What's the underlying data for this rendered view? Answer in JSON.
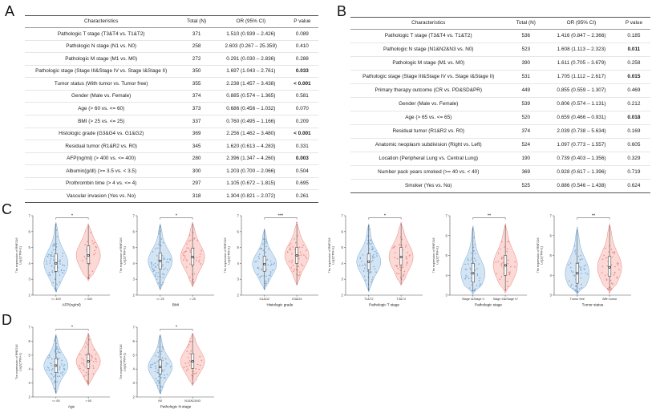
{
  "figure": {
    "panel_a_label": "A",
    "panel_b_label": "B",
    "panel_c_label": "C",
    "panel_d_label": "D"
  },
  "table_a": {
    "columns": [
      "Characteristics",
      "Total (N)",
      "OR (95% CI)",
      "P value"
    ],
    "rows": [
      {
        "cells": [
          "Pathologic T stage (T3&T4 vs. T1&T2)",
          "371",
          "1.510 (0.939 – 2.426)",
          "0.089"
        ],
        "bold": false
      },
      {
        "cells": [
          "Pathologic N stage (N1 vs. N0)",
          "258",
          "2.603 (0.267 – 25.359)",
          "0.410"
        ],
        "bold": false
      },
      {
        "cells": [
          "Pathologic M stage (M1 vs. M0)",
          "272",
          "0.291 (0.030 – 2.836)",
          "0.288"
        ],
        "bold": false
      },
      {
        "cells": [
          "Pathologic stage (Stage III&Stage IV vs. Stage I&Stage II)",
          "350",
          "1.697 (1.043 – 2.761)",
          "0.033"
        ],
        "bold": true
      },
      {
        "cells": [
          "Tumor status (With tumor vs. Tumor free)",
          "355",
          "2.238 (1.457 – 3.438)",
          "< 0.001"
        ],
        "bold": true
      },
      {
        "cells": [
          "Gender (Male vs. Female)",
          "374",
          "0.885 (0.574 – 1.365)",
          "0.581"
        ],
        "bold": false
      },
      {
        "cells": [
          "Age (> 60 vs. <= 60)",
          "373",
          "0.686 (0.456 – 1.032)",
          "0.070"
        ],
        "bold": false
      },
      {
        "cells": [
          "BMI (> 25 vs. <= 25)",
          "337",
          "0.760 (0.495 – 1.166)",
          "0.209"
        ],
        "bold": false
      },
      {
        "cells": [
          "Histologic grade (G3&G4 vs. G1&G2)",
          "369",
          "2.256 (1.462 – 3.480)",
          "< 0.001"
        ],
        "bold": true
      },
      {
        "cells": [
          "Residual tumor (R1&R2 vs. R0)",
          "345",
          "1.620 (0.613 – 4.283)",
          "0.331"
        ],
        "bold": false
      },
      {
        "cells": [
          "AFP(ng/ml) (> 400 vs. <= 400)",
          "280",
          "2.396 (1.347 – 4.260)",
          "0.003"
        ],
        "bold": true
      },
      {
        "cells": [
          "Albumin(g/dl) (>= 3.5 vs. < 3.5)",
          "300",
          "1.203 (0.700 – 2.066)",
          "0.504"
        ],
        "bold": false
      },
      {
        "cells": [
          "Prothrombin time (> 4 vs. <= 4)",
          "297",
          "1.105 (0.672 – 1.815)",
          "0.695"
        ],
        "bold": false
      },
      {
        "cells": [
          "Vascular invasion (Yes vs. No)",
          "318",
          "1.304 (0.821 – 2.072)",
          "0.261"
        ],
        "bold": false
      }
    ]
  },
  "table_b": {
    "columns": [
      "Characteristics",
      "Total (N)",
      "OR (95% CI)",
      "P value"
    ],
    "rows": [
      {
        "cells": [
          "Pathologic T stage (T3&T4 vs. T1&T2)",
          "536",
          "1.416 (0.847 – 2.366)",
          "0.185"
        ],
        "bold": false
      },
      {
        "cells": [
          "Pathologic N stage (N1&N2&N3 vs. N0)",
          "523",
          "1.608 (1.113 – 2.323)",
          "0.011"
        ],
        "bold": true
      },
      {
        "cells": [
          "Pathologic M stage (M1 vs. M0)",
          "390",
          "1.611 (0.705 – 3.679)",
          "0.258"
        ],
        "bold": false
      },
      {
        "cells": [
          "Pathologic stage (Stage III&Stage IV vs. Stage I&Stage II)",
          "531",
          "1.705 (1.112 – 2.617)",
          "0.015"
        ],
        "bold": true
      },
      {
        "cells": [
          "Primary therapy outcome (CR vs. PD&SD&PR)",
          "449",
          "0.855 (0.559 – 1.307)",
          "0.469"
        ],
        "bold": false
      },
      {
        "cells": [
          "Gender (Male vs. Female)",
          "539",
          "0.806 (0.574 – 1.131)",
          "0.212"
        ],
        "bold": false
      },
      {
        "cells": [
          "Age (> 65 vs. <= 65)",
          "520",
          "0.659 (0.466 – 0.931)",
          "0.018"
        ],
        "bold": true
      },
      {
        "cells": [
          "Residual tumor (R1&R2 vs. R0)",
          "374",
          "2.039 (0.738 – 5.634)",
          "0.169"
        ],
        "bold": false
      },
      {
        "cells": [
          "Anatomic neoplasm subdivision (Right vs. Left)",
          "524",
          "1.097 (0.773 – 1.557)",
          "0.605"
        ],
        "bold": false
      },
      {
        "cells": [
          "Location (Peripheral Lung vs. Central Lung)",
          "190",
          "0.739 (0.403 – 1.356)",
          "0.329"
        ],
        "bold": false
      },
      {
        "cells": [
          "Number pack years smoked (>= 40 vs. < 40)",
          "369",
          "0.928 (0.617 – 1.396)",
          "0.719"
        ],
        "bold": false
      },
      {
        "cells": [
          "Smoker (Yes vs. No)",
          "525",
          "0.886 (0.546 – 1.438)",
          "0.624"
        ],
        "bold": false
      }
    ]
  },
  "chart_shared": {
    "ylabel_line1": "The expression of RNF216",
    "ylabel_line2": "Log2(TPM+1)",
    "group1_color": "#6FA7D8",
    "group2_color": "#F08178"
  },
  "chart_data": [
    {
      "panel": "C",
      "type": "violin",
      "id": "afp",
      "xlabel": "AFP(ng/ml)",
      "sig": "*",
      "ylim": [
        2,
        7
      ],
      "yticks": [
        2,
        3,
        4,
        5,
        6,
        7
      ],
      "groups": [
        {
          "label": "<= 400",
          "color": "#6FA7D8",
          "median": 4.0,
          "q1": 3.5,
          "q3": 4.6,
          "min": 2.2,
          "max": 6.6,
          "n": 70
        },
        {
          "label": "> 400",
          "color": "#F08178",
          "median": 4.5,
          "q1": 4.0,
          "q3": 5.1,
          "min": 2.9,
          "max": 6.5,
          "n": 26
        }
      ]
    },
    {
      "panel": "C",
      "type": "violin",
      "id": "bmi",
      "xlabel": "BMI",
      "sig": "*",
      "ylim": [
        2,
        7
      ],
      "yticks": [
        2,
        3,
        4,
        5,
        6,
        7
      ],
      "groups": [
        {
          "label": "<= 25",
          "color": "#6FA7D8",
          "median": 4.15,
          "q1": 3.65,
          "q3": 4.65,
          "min": 2.3,
          "max": 6.5,
          "n": 60
        },
        {
          "label": "> 25",
          "color": "#F08178",
          "median": 4.4,
          "q1": 3.9,
          "q3": 4.95,
          "min": 2.5,
          "max": 6.6,
          "n": 45
        }
      ]
    },
    {
      "panel": "C",
      "type": "violin",
      "id": "histologic-grade",
      "xlabel": "Histologic grade",
      "sig": "***",
      "ylim": [
        2,
        7
      ],
      "yticks": [
        2,
        3,
        4,
        5,
        6,
        7
      ],
      "groups": [
        {
          "label": "G1&G2",
          "color": "#6FA7D8",
          "median": 3.95,
          "q1": 3.5,
          "q3": 4.45,
          "min": 2.3,
          "max": 6.2,
          "n": 55
        },
        {
          "label": "G3&G4",
          "color": "#F08178",
          "median": 4.5,
          "q1": 4.0,
          "q3": 5.0,
          "min": 2.6,
          "max": 6.6,
          "n": 50
        }
      ]
    },
    {
      "panel": "C",
      "type": "violin",
      "id": "pathologic-t-stage",
      "xlabel": "Pathologic T stage",
      "sig": "*",
      "ylim": [
        2,
        7
      ],
      "yticks": [
        2,
        3,
        4,
        5,
        6,
        7
      ],
      "groups": [
        {
          "label": "T1&T2",
          "color": "#6FA7D8",
          "median": 4.1,
          "q1": 3.6,
          "q3": 4.6,
          "min": 2.2,
          "max": 6.5,
          "n": 60
        },
        {
          "label": "T3&T4",
          "color": "#F08178",
          "median": 4.4,
          "q1": 3.9,
          "q3": 5.0,
          "min": 2.6,
          "max": 6.6,
          "n": 40
        }
      ]
    },
    {
      "panel": "C",
      "type": "violin",
      "id": "pathologic-stage",
      "xlabel": "Pathologic stage",
      "sig": "**",
      "ylim": [
        3,
        7
      ],
      "yticks": [
        3,
        4,
        5,
        6,
        7
      ],
      "groups": [
        {
          "label": "Stage I&Stage II",
          "color": "#6FA7D8",
          "median": 4.1,
          "q1": 3.65,
          "q3": 4.6,
          "min": 3.05,
          "max": 6.5,
          "n": 55
        },
        {
          "label": "Stage III&Stage IV",
          "color": "#F08178",
          "median": 4.5,
          "q1": 4.0,
          "q3": 5.0,
          "min": 3.1,
          "max": 6.6,
          "n": 38
        }
      ]
    },
    {
      "panel": "C",
      "type": "violin",
      "id": "tumor-status",
      "xlabel": "Tumor status",
      "sig": "**",
      "ylim": [
        3,
        7
      ],
      "yticks": [
        3,
        4,
        5,
        6,
        7
      ],
      "groups": [
        {
          "label": "Tumor free",
          "color": "#6FA7D8",
          "median": 4.1,
          "q1": 3.6,
          "q3": 4.6,
          "min": 3.05,
          "max": 6.4,
          "n": 55
        },
        {
          "label": "With tumor",
          "color": "#F08178",
          "median": 4.4,
          "q1": 3.95,
          "q3": 4.95,
          "min": 3.1,
          "max": 6.6,
          "n": 45
        }
      ]
    },
    {
      "panel": "D",
      "type": "violin",
      "id": "age",
      "xlabel": "Age",
      "sig": "*",
      "ylim": [
        2,
        7
      ],
      "yticks": [
        2,
        3,
        4,
        5,
        6,
        7
      ],
      "groups": [
        {
          "label": "<= 65",
          "color": "#6FA7D8",
          "median": 4.25,
          "q1": 3.75,
          "q3": 4.75,
          "min": 2.2,
          "max": 6.5,
          "n": 60
        },
        {
          "label": "> 65",
          "color": "#F08178",
          "median": 4.55,
          "q1": 4.05,
          "q3": 5.05,
          "min": 2.8,
          "max": 6.6,
          "n": 40
        }
      ]
    },
    {
      "panel": "D",
      "type": "violin",
      "id": "pathologic-n-stage",
      "xlabel": "Pathologic N stage",
      "sig": "*",
      "ylim": [
        2,
        7
      ],
      "yticks": [
        2,
        3,
        4,
        5,
        6,
        7
      ],
      "groups": [
        {
          "label": "N0",
          "color": "#6FA7D8",
          "median": 4.15,
          "q1": 3.65,
          "q3": 4.65,
          "min": 2.2,
          "max": 6.5,
          "n": 60
        },
        {
          "label": "N1&N2&N3",
          "color": "#F08178",
          "median": 4.55,
          "q1": 4.05,
          "q3": 5.1,
          "min": 2.8,
          "max": 6.6,
          "n": 35
        }
      ]
    }
  ]
}
